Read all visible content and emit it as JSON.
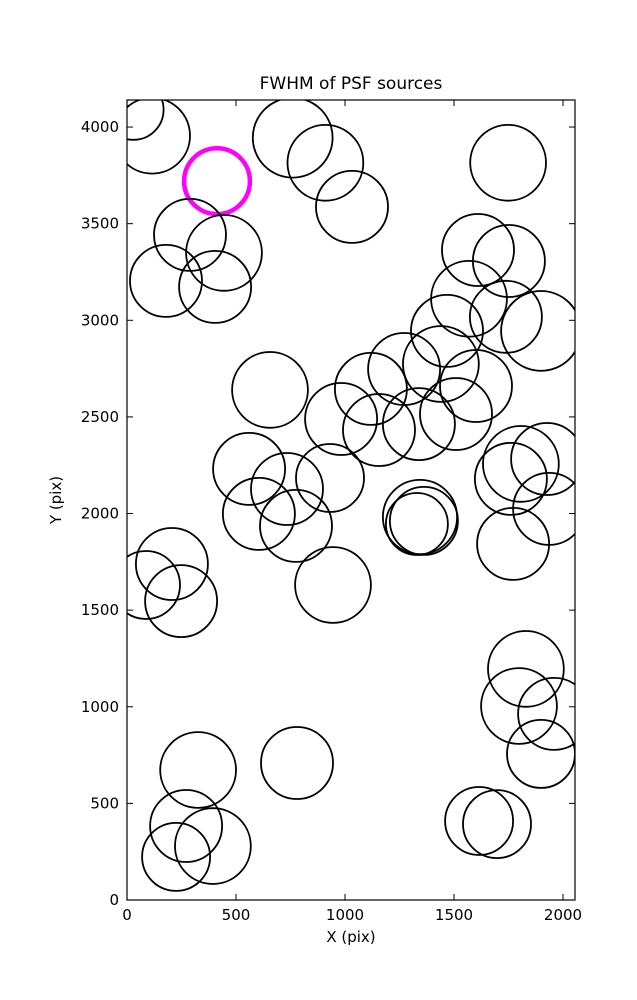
{
  "chart_data": {
    "type": "scatter",
    "title": "FWHM of PSF sources",
    "xlabel": "X (pix)",
    "ylabel": "Y (pix)",
    "xlim": [
      0,
      2055
    ],
    "ylim": [
      0,
      4140
    ],
    "xticks": [
      0,
      500,
      1000,
      1500,
      2000
    ],
    "yticks": [
      0,
      500,
      1000,
      1500,
      2000,
      2500,
      3000,
      3500,
      4000
    ],
    "grid": false,
    "legend_position": "none",
    "marker": "open-circle",
    "colors": {
      "circle": "#000000",
      "highlight": "#ff00ff",
      "axes": "#000000",
      "background": "#ffffff"
    },
    "points": [
      {
        "x": 115,
        "y": 3955,
        "r": 174
      },
      {
        "x": 30,
        "y": 4090,
        "r": 138
      },
      {
        "x": 413,
        "y": 3720,
        "r": 151,
        "highlight": true
      },
      {
        "x": 760,
        "y": 3945,
        "r": 183
      },
      {
        "x": 910,
        "y": 3815,
        "r": 174
      },
      {
        "x": 1032,
        "y": 3587,
        "r": 165
      },
      {
        "x": 1748,
        "y": 3815,
        "r": 174
      },
      {
        "x": 289,
        "y": 3442,
        "r": 165
      },
      {
        "x": 445,
        "y": 3349,
        "r": 174
      },
      {
        "x": 179,
        "y": 3204,
        "r": 165
      },
      {
        "x": 404,
        "y": 3173,
        "r": 165
      },
      {
        "x": 1610,
        "y": 3364,
        "r": 165
      },
      {
        "x": 1752,
        "y": 3307,
        "r": 165
      },
      {
        "x": 1569,
        "y": 3111,
        "r": 174
      },
      {
        "x": 1738,
        "y": 3018,
        "r": 165
      },
      {
        "x": 1899,
        "y": 2945,
        "r": 183
      },
      {
        "x": 1468,
        "y": 2945,
        "r": 165
      },
      {
        "x": 656,
        "y": 2640,
        "r": 174
      },
      {
        "x": 1119,
        "y": 2645,
        "r": 165
      },
      {
        "x": 1271,
        "y": 2748,
        "r": 165
      },
      {
        "x": 1440,
        "y": 2774,
        "r": 174
      },
      {
        "x": 1601,
        "y": 2660,
        "r": 165
      },
      {
        "x": 982,
        "y": 2489,
        "r": 165
      },
      {
        "x": 1156,
        "y": 2432,
        "r": 165
      },
      {
        "x": 1339,
        "y": 2463,
        "r": 165
      },
      {
        "x": 1509,
        "y": 2515,
        "r": 165
      },
      {
        "x": 1807,
        "y": 2257,
        "r": 174
      },
      {
        "x": 1927,
        "y": 2282,
        "r": 165
      },
      {
        "x": 560,
        "y": 2231,
        "r": 165
      },
      {
        "x": 734,
        "y": 2127,
        "r": 165
      },
      {
        "x": 605,
        "y": 1998,
        "r": 165
      },
      {
        "x": 775,
        "y": 1936,
        "r": 165
      },
      {
        "x": 931,
        "y": 2184,
        "r": 156
      },
      {
        "x": 1344,
        "y": 1982,
        "r": 170
      },
      {
        "x": 1362,
        "y": 1962,
        "r": 156
      },
      {
        "x": 1330,
        "y": 1946,
        "r": 142
      },
      {
        "x": 1761,
        "y": 2179,
        "r": 165
      },
      {
        "x": 1936,
        "y": 2024,
        "r": 165
      },
      {
        "x": 1771,
        "y": 1843,
        "r": 165
      },
      {
        "x": 206,
        "y": 1739,
        "r": 165
      },
      {
        "x": 87,
        "y": 1630,
        "r": 156
      },
      {
        "x": 248,
        "y": 1547,
        "r": 165
      },
      {
        "x": 945,
        "y": 1630,
        "r": 174
      },
      {
        "x": 1830,
        "y": 1196,
        "r": 174
      },
      {
        "x": 1798,
        "y": 1004,
        "r": 174
      },
      {
        "x": 1959,
        "y": 963,
        "r": 165
      },
      {
        "x": 1899,
        "y": 756,
        "r": 156
      },
      {
        "x": 1615,
        "y": 409,
        "r": 156
      },
      {
        "x": 1697,
        "y": 393,
        "r": 156
      },
      {
        "x": 326,
        "y": 673,
        "r": 174
      },
      {
        "x": 271,
        "y": 383,
        "r": 165
      },
      {
        "x": 394,
        "y": 279,
        "r": 174
      },
      {
        "x": 225,
        "y": 223,
        "r": 156
      },
      {
        "x": 780,
        "y": 709,
        "r": 165
      }
    ]
  }
}
